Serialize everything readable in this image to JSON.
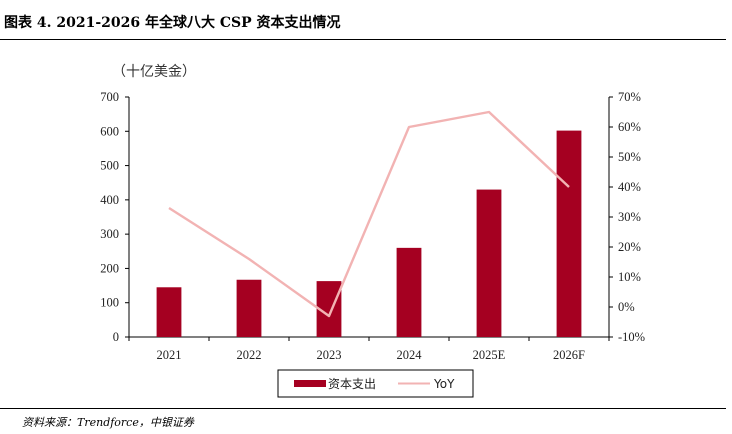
{
  "header": {
    "title": "图表 4. 2021-2026 年全球八大 CSP 资本支出情况"
  },
  "footer": {
    "source": "资料来源：Trendforce，中银证券"
  },
  "colors": {
    "bar": "#A50021",
    "line": "#F2B3B3",
    "axis": "#000000"
  },
  "chart_data": {
    "type": "bar",
    "categories": [
      "2021",
      "2022",
      "2023",
      "2024",
      "2025E",
      "2026F"
    ],
    "y_unit_label": "（十亿美金）",
    "ylim": [
      0,
      700
    ],
    "yticks": [
      "0",
      "100",
      "200",
      "300",
      "400",
      "500",
      "600",
      "700"
    ],
    "y2lim": [
      -10,
      70
    ],
    "y2ticks": [
      "-10%",
      "0%",
      "10%",
      "20%",
      "30%",
      "40%",
      "50%",
      "60%",
      "70%"
    ],
    "series": [
      {
        "name": "资本支出",
        "type": "bar",
        "axis": "left",
        "values": [
          145,
          167,
          163,
          260,
          430,
          602
        ]
      },
      {
        "name": "YoY",
        "type": "line",
        "axis": "right",
        "values": [
          33,
          16,
          -3,
          60,
          65,
          40
        ]
      }
    ],
    "legend": "bottom-center",
    "grid": false
  }
}
